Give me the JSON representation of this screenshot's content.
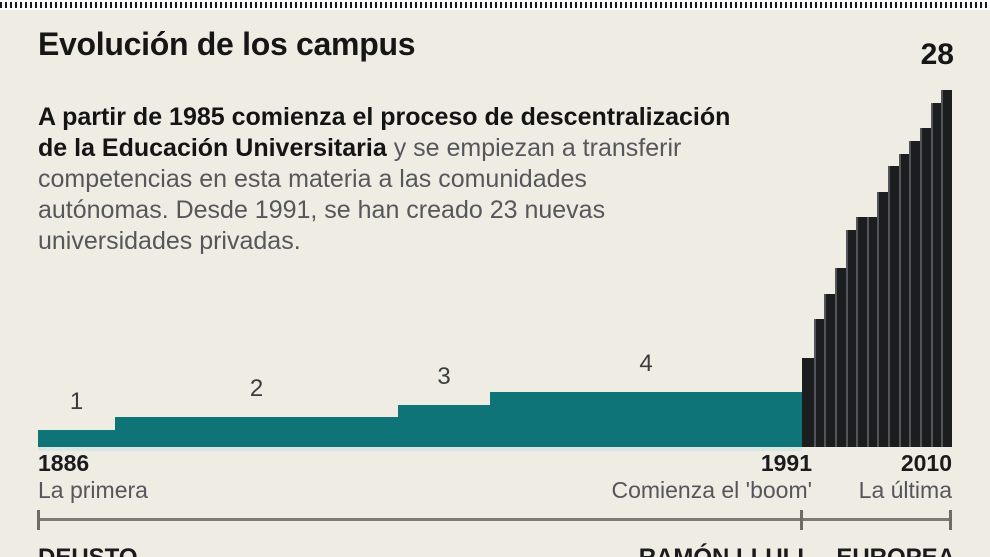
{
  "page": {
    "background": "#eeece3"
  },
  "header": {
    "title": "Evolución de los campus"
  },
  "intro": {
    "lines": [
      {
        "bold": "A partir de 1985 comienza el proceso de descentralización",
        "normal": ""
      },
      {
        "bold": "de la Educación Universitaria",
        "normal": " y se empiezan a transferir"
      },
      {
        "bold": "",
        "normal": "competencias en esta materia a las comunidades"
      },
      {
        "bold": "",
        "normal": "autónomas. Desde 1991, se han creado 23 nuevas"
      },
      {
        "bold": "",
        "normal": "universidades privadas."
      }
    ]
  },
  "chart_data": {
    "type": "bar",
    "title": "Evolución de los campus",
    "ylim": [
      0,
      28
    ],
    "peak_label": "28",
    "colors": {
      "teal": "#0e7478",
      "bar": "#1c1d1f",
      "bar_separator": "#53555a",
      "ruler": "#7b7c73",
      "background": "#eeece3"
    },
    "teal_steps": [
      {
        "label": "1",
        "value": 1,
        "x0": 0.0,
        "x1": 0.0843
      },
      {
        "label": "2",
        "value": 2,
        "x0": 0.0843,
        "x1": 0.3939
      },
      {
        "label": "3",
        "value": 3,
        "x0": 0.3939,
        "x1": 0.4946
      },
      {
        "label": "4",
        "value": 4,
        "x0": 0.4946,
        "x1": 0.8359
      }
    ],
    "black_bars": {
      "x0": 0.8359,
      "x1": 1.0,
      "values": [
        7,
        10,
        12,
        14,
        17,
        18,
        18,
        20,
        22,
        23,
        24,
        25,
        27,
        28
      ]
    },
    "x_axis": [
      {
        "year": "1886",
        "caption": "La primera"
      },
      {
        "year": "1991",
        "caption": "Comienza el 'boom'"
      },
      {
        "year": "2010",
        "caption": "La última"
      }
    ],
    "footer_labels": [
      "DEUSTO",
      "RAMÓN LLULL",
      "EUROPEA"
    ]
  }
}
